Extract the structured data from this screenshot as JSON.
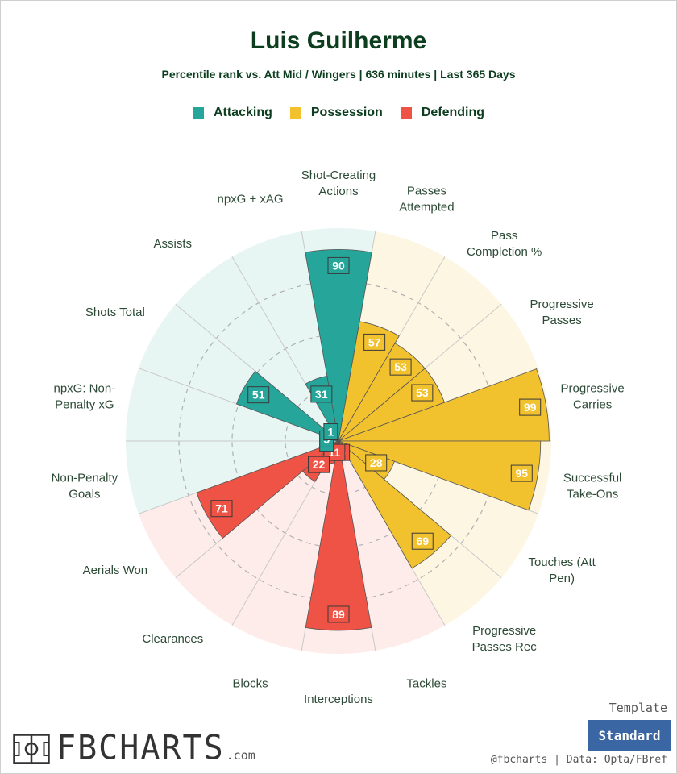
{
  "title": "Luis Guilherme",
  "subtitle": "Percentile rank vs. Att Mid / Wingers | 636 minutes | Last 365 Days",
  "legend": [
    {
      "label": "Attacking",
      "color": "#26a69a"
    },
    {
      "label": "Possession",
      "color": "#f2c12e"
    },
    {
      "label": "Defending",
      "color": "#ef5346"
    }
  ],
  "chart_data": {
    "type": "polar-bar",
    "title": "Luis Guilherme",
    "rlim": [
      0,
      100
    ],
    "grid": true,
    "legend_position": "top",
    "categories": [
      {
        "label": "Shot-Creating\nActions",
        "value": 90,
        "group": "Attacking"
      },
      {
        "label": "Passes\nAttempted",
        "value": 57,
        "group": "Possession"
      },
      {
        "label": "Pass\nCompletion %",
        "value": 53,
        "group": "Possession"
      },
      {
        "label": "Progressive\nPasses",
        "value": 53,
        "group": "Possession"
      },
      {
        "label": "Progressive\nCarries",
        "value": 99,
        "group": "Possession"
      },
      {
        "label": "Successful\nTake-Ons",
        "value": 95,
        "group": "Possession"
      },
      {
        "label": "Touches (Att\nPen)",
        "value": 28,
        "group": "Possession"
      },
      {
        "label": "Progressive\nPasses Rec",
        "value": 69,
        "group": "Possession"
      },
      {
        "label": "Tackles",
        "value": 6,
        "group": "Defending"
      },
      {
        "label": "Interceptions",
        "value": 89,
        "group": "Defending"
      },
      {
        "label": "Blocks",
        "value": 11,
        "group": "Defending"
      },
      {
        "label": "Clearances",
        "value": 22,
        "group": "Defending"
      },
      {
        "label": "Aerials Won",
        "value": 71,
        "group": "Defending"
      },
      {
        "label": "Non-Penalty\nGoals",
        "value": 1,
        "group": "Attacking"
      },
      {
        "label": "npxG: Non-\nPenalty xG",
        "value": 5,
        "group": "Attacking"
      },
      {
        "label": "Shots Total",
        "value": 51,
        "group": "Attacking"
      },
      {
        "label": "Assists",
        "value": 1,
        "group": "Attacking"
      },
      {
        "label": "npxG + xAG",
        "value": 31,
        "group": "Attacking"
      }
    ],
    "group_colors": {
      "Attacking": {
        "bar": "#26a69a",
        "background": "#e8f6f3"
      },
      "Possession": {
        "bar": "#f2c12e",
        "background": "#fdf6e3"
      },
      "Defending": {
        "bar": "#ef5346",
        "background": "#fdecea"
      }
    }
  },
  "footer": {
    "template_label": "Template",
    "template_button": "Standard",
    "credits": "@fbcharts | Data: Opta/FBref",
    "logo_text": "FBCHARTS",
    "logo_suffix": ".com",
    "logo_icon": "pitch-icon"
  }
}
